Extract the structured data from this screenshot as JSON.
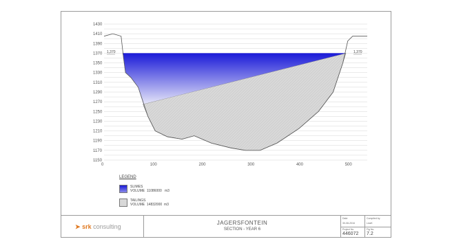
{
  "drawing": {
    "y_axis_ticks": [
      "1430",
      "1410",
      "1390",
      "1370",
      "1350",
      "1330",
      "1310",
      "1290",
      "1270",
      "1250",
      "1230",
      "1210",
      "1190",
      "1170",
      "1150"
    ],
    "x_axis_ticks": [
      "0",
      "100",
      "200",
      "300",
      "400",
      "500"
    ],
    "elevation_labels": {
      "left": "1,370",
      "right": "1,370"
    },
    "colors": {
      "slimes_top": "#1a1ad8",
      "slimes_bottom": "#e6e6f8",
      "tailings": "#d8d8d8",
      "grid": "#c9c9c9"
    }
  },
  "legend": {
    "title": "LEGEND",
    "items": [
      {
        "name": "SLIMES",
        "volume_label": "VOLUME",
        "volume": "11086000",
        "unit": "m3"
      },
      {
        "name": "TAILINGS",
        "volume_label": "VOLUME",
        "volume": "14832000",
        "unit": "m3"
      }
    ]
  },
  "title_block": {
    "logo_text": "srk",
    "logo_sub": "consulting",
    "project_name": "JAGERSFONTEIN",
    "drawing_title": "SECTION - YEAR 6",
    "date_label": "Date",
    "date_value": "30-08-2016",
    "compiled_label": "Compiled by",
    "compiled_value": "LewK",
    "project_no_label": "Project No",
    "project_no_value": "446072",
    "fig_label": "Fig No.",
    "fig_value": "7.2"
  }
}
